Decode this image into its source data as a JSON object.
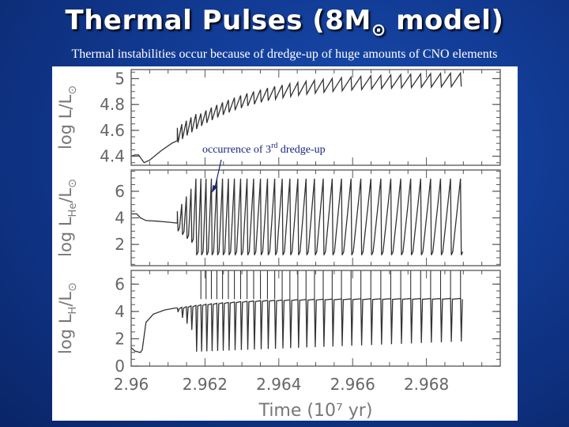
{
  "slide": {
    "title_main": "Thermal Pulses (8M",
    "title_sun": "⊙",
    "title_tail": " model)",
    "subtitle": "Thermal instabilities occur because of  dredge-up of  huge amounts of CNO elements"
  },
  "chart_data": [
    {
      "type": "line",
      "panel": "luminosity",
      "ylabel": "log L/L⊙",
      "ylim": [
        4.33,
        5.07
      ],
      "yticks": [
        4.4,
        4.6,
        4.8,
        5
      ],
      "ytick_labels": [
        "4.4",
        "4.6",
        "4.8",
        "5"
      ],
      "xlim": [
        2.96,
        2.97
      ],
      "color": "#333333",
      "annotation": {
        "text": "occurrence of 3",
        "sup": "rd",
        "text_tail": " dredge-up"
      }
    },
    {
      "type": "line",
      "panel": "helium_luminosity",
      "ylabel": "log L_He/L⊙",
      "ylim": [
        0.4,
        7.6
      ],
      "yticks": [
        2,
        4,
        6
      ],
      "ytick_labels": [
        "2",
        "4",
        "6"
      ],
      "xlim": [
        2.96,
        2.97
      ],
      "color": "#333333"
    },
    {
      "type": "line",
      "panel": "hydrogen_luminosity",
      "ylabel": "log L_H/L⊙",
      "ylim": [
        0,
        7
      ],
      "yticks": [
        0,
        2,
        4,
        6
      ],
      "ytick_labels": [
        "0",
        "2",
        "4",
        "6"
      ],
      "xlim": [
        2.96,
        2.97
      ],
      "xlabel": "Time (10⁷ yr)",
      "xticks": [
        2.96,
        2.962,
        2.964,
        2.966,
        2.968
      ],
      "xtick_labels": [
        "2.96",
        "2.962",
        "2.964",
        "2.966",
        "2.968"
      ],
      "color": "#333333"
    }
  ]
}
